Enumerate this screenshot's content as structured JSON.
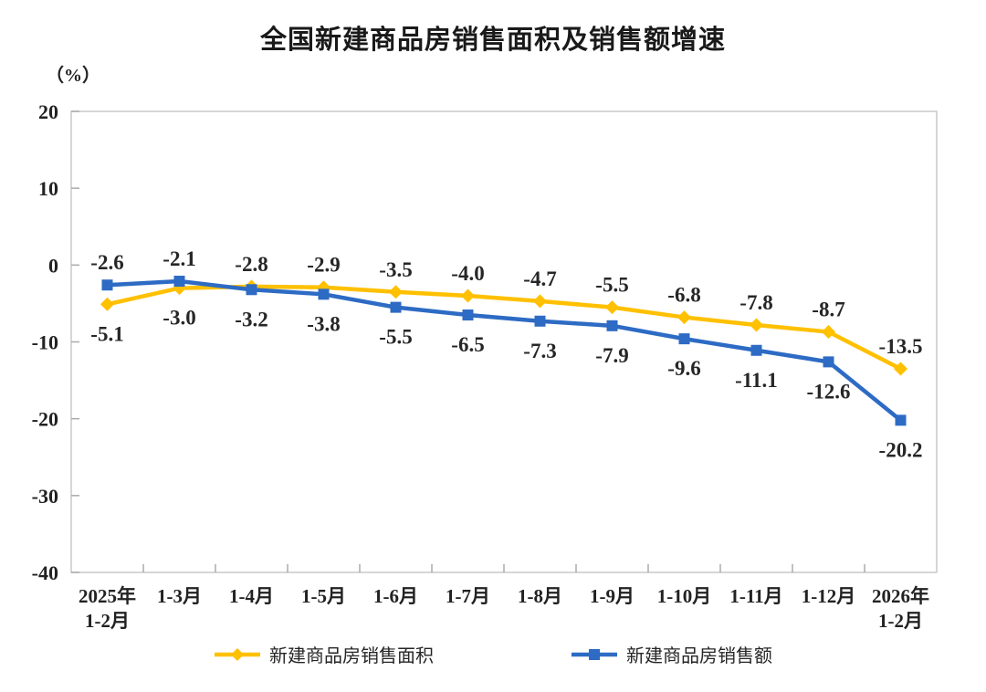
{
  "chart_data": {
    "type": "line",
    "title": "全国新建商品房销售面积及销售额增速",
    "unit_label": "（%）",
    "xlabel": "",
    "ylabel": "%",
    "categories": [
      "2025年\n1-2月",
      "1-3月",
      "1-4月",
      "1-5月",
      "1-6月",
      "1-7月",
      "1-8月",
      "1-9月",
      "1-10月",
      "1-11月",
      "1-12月",
      "2026年\n1-2月"
    ],
    "yticks": [
      20,
      10,
      0,
      -10,
      -20,
      -30,
      -40
    ],
    "ylim": [
      -40,
      20
    ],
    "grid": false,
    "legend_position": "bottom",
    "data_labels": true,
    "series": [
      {
        "name": "新建商品房销售面积",
        "color": "#FFC000",
        "marker": "diamond",
        "values": [
          -5.1,
          -3.0,
          -2.8,
          -2.9,
          -3.5,
          -4.0,
          -4.7,
          -5.5,
          -6.8,
          -7.8,
          -8.7,
          -13.5
        ]
      },
      {
        "name": "新建商品房销售额",
        "color": "#2D6BC4",
        "marker": "square",
        "values": [
          -2.6,
          -2.1,
          -3.2,
          -3.8,
          -5.5,
          -6.5,
          -7.3,
          -7.9,
          -9.6,
          -11.1,
          -12.6,
          -20.2
        ]
      }
    ]
  },
  "colors": {
    "axis_border": "#c9c9c9",
    "tick": "#aaaaaa",
    "label_text": "#262626",
    "axis_text": "#222222"
  }
}
